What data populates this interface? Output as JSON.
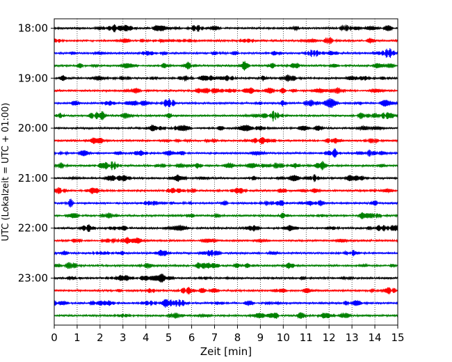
{
  "chart_data": {
    "type": "line",
    "title": "",
    "xlabel": "Zeit  [min]",
    "ylabel": "UTC (Lokalzeit = UTC + 01:00)",
    "xlim": [
      0,
      15
    ],
    "x_ticks": [
      "0",
      "1",
      "2",
      "3",
      "4",
      "5",
      "6",
      "7",
      "8",
      "9",
      "10",
      "11",
      "12",
      "13",
      "14",
      "15"
    ],
    "y_tick_labels": [
      "18:00",
      "19:00",
      "20:00",
      "21:00",
      "22:00",
      "23:00"
    ],
    "trace_interval_minutes": 15,
    "start_time": "18:00",
    "trace_count": 24,
    "trace_colors": [
      "#000000",
      "#ff0000",
      "#0000ff",
      "#008000"
    ],
    "grid": "vertical dotted lines at each minute",
    "legend": "none"
  }
}
